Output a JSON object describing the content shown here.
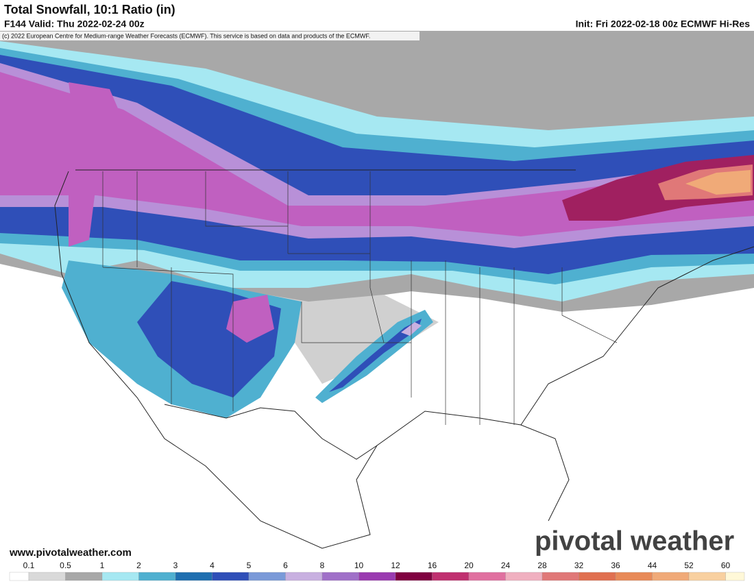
{
  "header": {
    "title": "Total Snowfall, 10:1 Ratio (in)",
    "valid": "F144 Valid: Thu 2022-02-24 00z",
    "init": "Init: Fri 2022-02-18 00z ECMWF Hi-Res"
  },
  "map": {
    "copyright": "(c) 2022 European Centre for Medium-range Weather Forecasts (ECMWF). This service is based on data and products of the ECMWF.",
    "website": "www.pivotalweather.com",
    "watermark": "pivotal weather"
  },
  "legend": {
    "labels": [
      0.1,
      0.5,
      1,
      2,
      3,
      4,
      5,
      6,
      8,
      10,
      12,
      16,
      20,
      24,
      28,
      32,
      36,
      44,
      52,
      60
    ],
    "colors": [
      "#ffffff",
      "#d9d9d9",
      "#a8a8a8",
      "#a6e8f2",
      "#4fb0d0",
      "#1f6fb0",
      "#2f4fb8",
      "#7a9ad8",
      "#c8b0e0",
      "#a070c8",
      "#9a3ab0",
      "#800040",
      "#c03070",
      "#e070a0",
      "#f0b0c0",
      "#e07878",
      "#e07050",
      "#e88a58",
      "#f0aa78",
      "#f8d0a0",
      "#fff8d8"
    ]
  }
}
